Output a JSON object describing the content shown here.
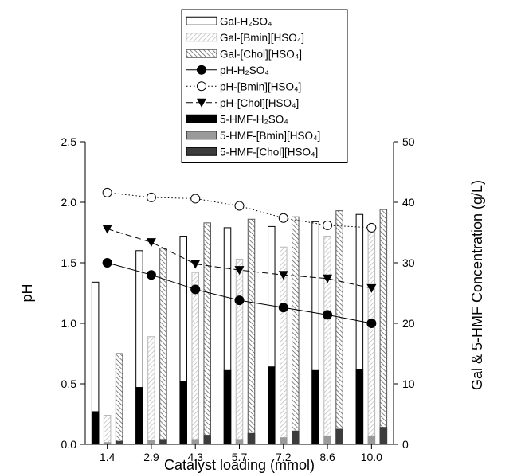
{
  "chart_data": {
    "type": "bar",
    "xlabel": "Catalyst loading (mmol)",
    "ylabel": "pH",
    "y2label": "Gal & 5-HMF Concentration (g/L)",
    "categories": [
      "1.4",
      "2.9",
      "4.3",
      "5.7",
      "7.2",
      "8.6",
      "10.0"
    ],
    "ylim": [
      0,
      2.5
    ],
    "y2lim": [
      0,
      50
    ],
    "yticks": [
      "0.0",
      "0.5",
      "1.0",
      "1.5",
      "2.0",
      "2.5"
    ],
    "y2ticks": [
      "0",
      "10",
      "20",
      "30",
      "40",
      "50"
    ],
    "legend_position": "top-center",
    "bar_series": [
      {
        "name": "Gal-H2SO4",
        "style": "white",
        "axis": "y2",
        "values": [
          26.8,
          32.0,
          34.4,
          35.8,
          36.0,
          36.8,
          38.0
        ]
      },
      {
        "name": "Gal-[Bmin][HSO4]",
        "style": "light-hatch",
        "axis": "y2",
        "values": [
          4.8,
          17.8,
          28.4,
          30.6,
          32.6,
          34.4,
          35.6
        ]
      },
      {
        "name": "Gal-[Chol][HSO4]",
        "style": "dark-hatch",
        "axis": "y2",
        "values": [
          15.0,
          32.4,
          36.6,
          37.2,
          37.6,
          38.6,
          38.8
        ]
      },
      {
        "name": "5-HMF-H2SO4",
        "style": "black",
        "axis": "y2",
        "values": [
          5.4,
          9.4,
          10.4,
          12.2,
          12.8,
          12.2,
          12.4
        ]
      },
      {
        "name": "5-HMF-[Bmin][HSO4]",
        "style": "gray",
        "axis": "y2",
        "values": [
          0.3,
          0.6,
          0.8,
          0.8,
          1.1,
          1.4,
          1.4
        ]
      },
      {
        "name": "5-HMF-[Chol][HSO4]",
        "style": "dark-gray",
        "axis": "y2",
        "values": [
          0.5,
          0.8,
          1.5,
          1.8,
          2.2,
          2.5,
          2.8
        ]
      }
    ],
    "line_series": [
      {
        "name": "pH-H2SO4",
        "axis": "y",
        "marker": "filled-circle",
        "dash": "solid",
        "values": [
          1.5,
          1.4,
          1.28,
          1.19,
          1.13,
          1.07,
          1.0
        ]
      },
      {
        "name": "pH-[Bmin][HSO4]",
        "axis": "y",
        "marker": "open-circle",
        "dash": "dotted",
        "values": [
          2.08,
          2.04,
          2.03,
          1.97,
          1.87,
          1.81,
          1.79
        ]
      },
      {
        "name": "pH-[Chol][HSO4]",
        "axis": "y",
        "marker": "filled-triangle-down",
        "dash": "dashed",
        "values": [
          1.78,
          1.67,
          1.49,
          1.44,
          1.4,
          1.37,
          1.29
        ]
      }
    ],
    "legend": [
      {
        "kind": "bar",
        "style": "white",
        "label": "Gal-H₂SO₄"
      },
      {
        "kind": "bar",
        "style": "light-hatch",
        "label": "Gal-[Bmin][HSO₄]"
      },
      {
        "kind": "bar",
        "style": "dark-hatch",
        "label": "Gal-[Chol][HSO₄]"
      },
      {
        "kind": "line",
        "marker": "filled-circle",
        "dash": "solid",
        "label": "pH-H₂SO₄"
      },
      {
        "kind": "line",
        "marker": "open-circle",
        "dash": "dotted",
        "label": "pH-[Bmin][HSO₄]"
      },
      {
        "kind": "line",
        "marker": "filled-triangle-down",
        "dash": "dashed",
        "label": "pH-[Chol][HSO₄]"
      },
      {
        "kind": "bar",
        "style": "black",
        "label": "5-HMF-H₂SO₄"
      },
      {
        "kind": "bar",
        "style": "gray",
        "label": "5-HMF-[Bmin][HSO₄]"
      },
      {
        "kind": "bar",
        "style": "dark-gray",
        "label": "5-HMF-[Chol][HSO₄]"
      }
    ]
  }
}
